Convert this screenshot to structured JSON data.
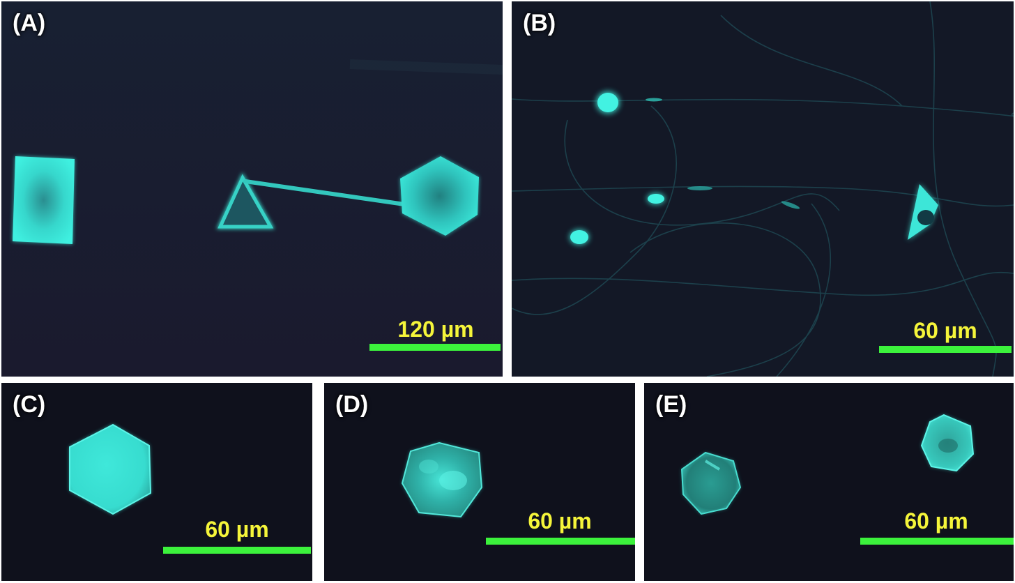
{
  "panels": {
    "a": {
      "label": "(A)",
      "scale_text": "120 µm"
    },
    "b": {
      "label": "(B)",
      "scale_text": "60 µm"
    },
    "c": {
      "label": "(C)",
      "scale_text": "60 µm"
    },
    "d": {
      "label": "(D)",
      "scale_text": "60 µm"
    },
    "e": {
      "label": "(E)",
      "scale_text": "60 µm"
    }
  },
  "colors": {
    "background": "#151826",
    "crystal_glow": "#35e8d8",
    "scale_bar": "#3cf23c",
    "scale_text": "#f5f53a",
    "label": "#ffffff"
  }
}
